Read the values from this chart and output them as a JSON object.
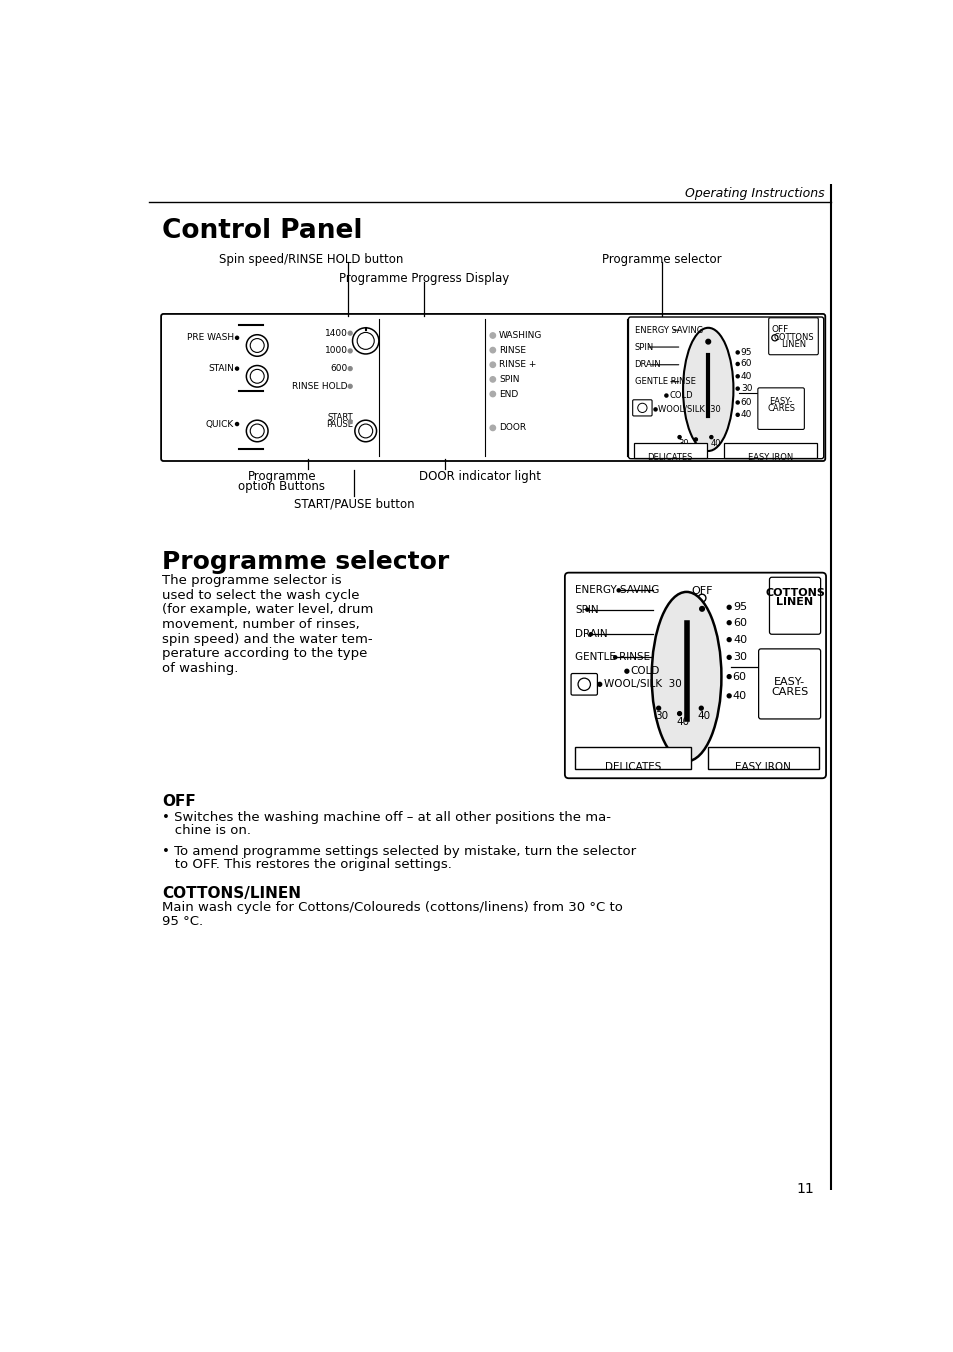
{
  "page_title": "Operating Instructions",
  "section1_title": "Control Panel",
  "section2_title": "Programme selector",
  "label_spin": "Spin speed/RINSE HOLD button",
  "label_prog": "Programme selector",
  "label_ppd": "Programme Progress Display",
  "label_prog_opt1": "Programme",
  "label_prog_opt2": "option Buttons",
  "label_door": "DOOR indicator light",
  "label_start": "START/PAUSE button",
  "ps_desc_lines": [
    "The programme selector is",
    "used to select the wash cycle",
    "(for example, water level, drum",
    "movement, number of rinses,",
    "spin speed) and the water tem-",
    "perature according to the type",
    "of washing."
  ],
  "off_title": "OFF",
  "off_b1a": "• Switches the washing machine off – at all other positions the ma-",
  "off_b1b": "   chine is on.",
  "off_b2a": "• To amend programme settings selected by mistake, turn the selector",
  "off_b2b": "   to OFF. This restores the original settings.",
  "cottons_title": "COTTONS/LINEN",
  "cottons_line1": "Main wash cycle for Cottons/Coloureds (cottons/linens) from 30 °C to",
  "cottons_line2": "95 °C.",
  "page_num": "11",
  "bg_color": "#ffffff",
  "text_color": "#000000"
}
